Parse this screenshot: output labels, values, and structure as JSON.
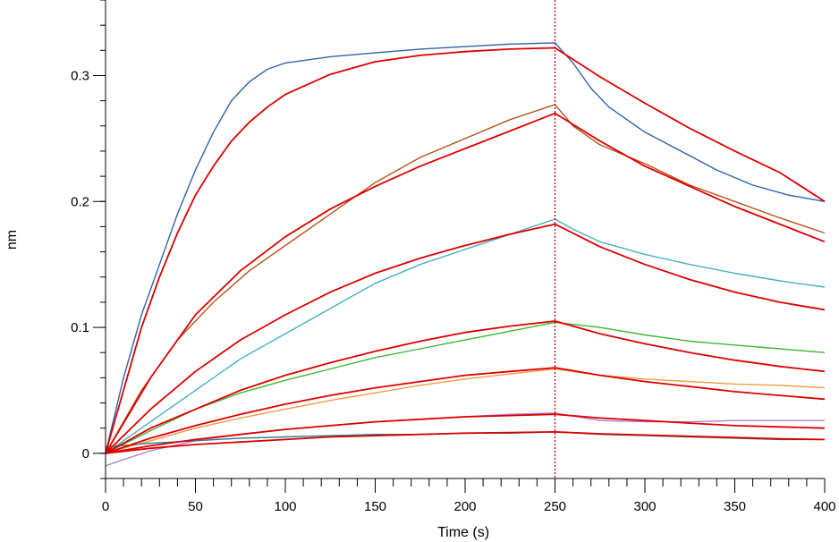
{
  "chart_data": {
    "type": "line",
    "title": "",
    "xlabel": "Time (s)",
    "ylabel": "nm",
    "xlim": [
      0,
      400
    ],
    "ylim": [
      -0.02,
      0.36
    ],
    "x_ticks": [
      0,
      50,
      100,
      150,
      200,
      250,
      300,
      350,
      400
    ],
    "x_tick_labels": [
      "0",
      "50",
      "100",
      "150",
      "200",
      "250",
      "300",
      "350",
      "400"
    ],
    "y_ticks": [
      0,
      0.1,
      0.2,
      0.3
    ],
    "y_tick_labels": [
      "0",
      "0.1",
      "0.2",
      "0.3"
    ],
    "x_minor_step": 10,
    "y_minor_step": 0.02,
    "association_end": 250,
    "marker_line_color": "#c00000",
    "fit_color": "#dd0000",
    "grid": false,
    "legend": "none",
    "series": [
      {
        "color": "#2e64aa",
        "points": [
          [
            0,
            0
          ],
          [
            10,
            0.06
          ],
          [
            20,
            0.11
          ],
          [
            30,
            0.15
          ],
          [
            40,
            0.19
          ],
          [
            50,
            0.225
          ],
          [
            60,
            0.255
          ],
          [
            70,
            0.28
          ],
          [
            80,
            0.295
          ],
          [
            90,
            0.305
          ],
          [
            100,
            0.31
          ],
          [
            125,
            0.315
          ],
          [
            150,
            0.318
          ],
          [
            175,
            0.321
          ],
          [
            200,
            0.323
          ],
          [
            225,
            0.325
          ],
          [
            250,
            0.326
          ],
          [
            260,
            0.31
          ],
          [
            270,
            0.29
          ],
          [
            280,
            0.275
          ],
          [
            290,
            0.265
          ],
          [
            300,
            0.255
          ],
          [
            320,
            0.24
          ],
          [
            340,
            0.225
          ],
          [
            360,
            0.213
          ],
          [
            380,
            0.205
          ],
          [
            400,
            0.2
          ]
        ]
      },
      {
        "color": "#b5531c",
        "points": [
          [
            0,
            0
          ],
          [
            20,
            0.05
          ],
          [
            40,
            0.09
          ],
          [
            60,
            0.12
          ],
          [
            80,
            0.145
          ],
          [
            100,
            0.165
          ],
          [
            125,
            0.19
          ],
          [
            150,
            0.215
          ],
          [
            175,
            0.235
          ],
          [
            200,
            0.25
          ],
          [
            225,
            0.265
          ],
          [
            250,
            0.277
          ],
          [
            260,
            0.26
          ],
          [
            275,
            0.245
          ],
          [
            300,
            0.23
          ],
          [
            325,
            0.213
          ],
          [
            350,
            0.2
          ],
          [
            375,
            0.187
          ],
          [
            400,
            0.175
          ]
        ]
      },
      {
        "color": "#45b0c0",
        "points": [
          [
            0,
            0
          ],
          [
            25,
            0.025
          ],
          [
            50,
            0.05
          ],
          [
            75,
            0.075
          ],
          [
            100,
            0.095
          ],
          [
            125,
            0.115
          ],
          [
            150,
            0.135
          ],
          [
            175,
            0.15
          ],
          [
            200,
            0.162
          ],
          [
            225,
            0.174
          ],
          [
            250,
            0.186
          ],
          [
            260,
            0.178
          ],
          [
            275,
            0.168
          ],
          [
            300,
            0.158
          ],
          [
            325,
            0.15
          ],
          [
            350,
            0.143
          ],
          [
            375,
            0.137
          ],
          [
            400,
            0.132
          ]
        ]
      },
      {
        "color": "#3fb734",
        "points": [
          [
            0,
            0
          ],
          [
            25,
            0.018
          ],
          [
            50,
            0.035
          ],
          [
            75,
            0.048
          ],
          [
            100,
            0.058
          ],
          [
            125,
            0.067
          ],
          [
            150,
            0.076
          ],
          [
            175,
            0.083
          ],
          [
            200,
            0.09
          ],
          [
            225,
            0.097
          ],
          [
            250,
            0.104
          ],
          [
            275,
            0.1
          ],
          [
            300,
            0.094
          ],
          [
            325,
            0.089
          ],
          [
            350,
            0.086
          ],
          [
            375,
            0.083
          ],
          [
            400,
            0.08
          ]
        ]
      },
      {
        "color": "#f09b45",
        "points": [
          [
            0,
            0
          ],
          [
            25,
            0.01
          ],
          [
            50,
            0.02
          ],
          [
            75,
            0.028
          ],
          [
            100,
            0.035
          ],
          [
            125,
            0.042
          ],
          [
            150,
            0.048
          ],
          [
            175,
            0.054
          ],
          [
            200,
            0.059
          ],
          [
            225,
            0.063
          ],
          [
            250,
            0.067
          ],
          [
            275,
            0.062
          ],
          [
            300,
            0.059
          ],
          [
            325,
            0.057
          ],
          [
            350,
            0.055
          ],
          [
            375,
            0.054
          ],
          [
            400,
            0.052
          ]
        ]
      },
      {
        "color": "#b07fd8",
        "points": [
          [
            0,
            -0.01
          ],
          [
            10,
            -0.005
          ],
          [
            25,
            0.002
          ],
          [
            50,
            0.01
          ],
          [
            75,
            0.015
          ],
          [
            100,
            0.019
          ],
          [
            125,
            0.022
          ],
          [
            150,
            0.025
          ],
          [
            175,
            0.027
          ],
          [
            200,
            0.029
          ],
          [
            225,
            0.031
          ],
          [
            250,
            0.032
          ],
          [
            275,
            0.026
          ],
          [
            300,
            0.025
          ],
          [
            325,
            0.025
          ],
          [
            350,
            0.026
          ],
          [
            375,
            0.026
          ],
          [
            400,
            0.026
          ]
        ]
      },
      {
        "color": "#2e7f8a",
        "points": [
          [
            0,
            0.005
          ],
          [
            25,
            0.008
          ],
          [
            50,
            0.01
          ],
          [
            75,
            0.012
          ],
          [
            100,
            0.013
          ],
          [
            125,
            0.014
          ],
          [
            150,
            0.015
          ],
          [
            175,
            0.015
          ],
          [
            200,
            0.016
          ],
          [
            225,
            0.016
          ],
          [
            250,
            0.017
          ],
          [
            275,
            0.015
          ],
          [
            300,
            0.014
          ],
          [
            325,
            0.013
          ],
          [
            350,
            0.012
          ],
          [
            375,
            0.011
          ],
          [
            400,
            0.011
          ]
        ]
      }
    ],
    "fits": [
      {
        "color": "#dd0000",
        "points": [
          [
            0,
            0
          ],
          [
            10,
            0.05
          ],
          [
            20,
            0.1
          ],
          [
            30,
            0.14
          ],
          [
            40,
            0.175
          ],
          [
            50,
            0.205
          ],
          [
            60,
            0.228
          ],
          [
            70,
            0.248
          ],
          [
            80,
            0.263
          ],
          [
            90,
            0.275
          ],
          [
            100,
            0.285
          ],
          [
            125,
            0.301
          ],
          [
            150,
            0.311
          ],
          [
            175,
            0.316
          ],
          [
            200,
            0.319
          ],
          [
            225,
            0.321
          ],
          [
            250,
            0.322
          ],
          [
            275,
            0.299
          ],
          [
            300,
            0.278
          ],
          [
            325,
            0.258
          ],
          [
            350,
            0.24
          ],
          [
            375,
            0.223
          ],
          [
            400,
            0.2
          ]
        ]
      },
      {
        "color": "#dd0000",
        "points": [
          [
            0,
            0
          ],
          [
            25,
            0.06
          ],
          [
            50,
            0.11
          ],
          [
            75,
            0.145
          ],
          [
            100,
            0.172
          ],
          [
            125,
            0.194
          ],
          [
            150,
            0.212
          ],
          [
            175,
            0.228
          ],
          [
            200,
            0.242
          ],
          [
            225,
            0.256
          ],
          [
            250,
            0.27
          ],
          [
            275,
            0.248
          ],
          [
            300,
            0.228
          ],
          [
            325,
            0.212
          ],
          [
            350,
            0.196
          ],
          [
            375,
            0.182
          ],
          [
            400,
            0.168
          ]
        ]
      },
      {
        "color": "#dd0000",
        "points": [
          [
            0,
            0
          ],
          [
            25,
            0.035
          ],
          [
            50,
            0.065
          ],
          [
            75,
            0.09
          ],
          [
            100,
            0.11
          ],
          [
            125,
            0.128
          ],
          [
            150,
            0.143
          ],
          [
            175,
            0.155
          ],
          [
            200,
            0.165
          ],
          [
            225,
            0.174
          ],
          [
            250,
            0.182
          ],
          [
            275,
            0.164
          ],
          [
            300,
            0.15
          ],
          [
            325,
            0.138
          ],
          [
            350,
            0.128
          ],
          [
            375,
            0.12
          ],
          [
            400,
            0.114
          ]
        ]
      },
      {
        "color": "#dd0000",
        "points": [
          [
            0,
            0
          ],
          [
            25,
            0.02
          ],
          [
            50,
            0.035
          ],
          [
            75,
            0.05
          ],
          [
            100,
            0.062
          ],
          [
            125,
            0.072
          ],
          [
            150,
            0.081
          ],
          [
            175,
            0.089
          ],
          [
            200,
            0.096
          ],
          [
            225,
            0.101
          ],
          [
            250,
            0.105
          ],
          [
            275,
            0.095
          ],
          [
            300,
            0.087
          ],
          [
            325,
            0.08
          ],
          [
            350,
            0.074
          ],
          [
            375,
            0.069
          ],
          [
            400,
            0.065
          ]
        ]
      },
      {
        "color": "#dd0000",
        "points": [
          [
            0,
            0
          ],
          [
            25,
            0.012
          ],
          [
            50,
            0.022
          ],
          [
            75,
            0.031
          ],
          [
            100,
            0.039
          ],
          [
            125,
            0.046
          ],
          [
            150,
            0.052
          ],
          [
            175,
            0.057
          ],
          [
            200,
            0.062
          ],
          [
            225,
            0.065
          ],
          [
            250,
            0.068
          ],
          [
            275,
            0.062
          ],
          [
            300,
            0.057
          ],
          [
            325,
            0.053
          ],
          [
            350,
            0.049
          ],
          [
            375,
            0.046
          ],
          [
            400,
            0.043
          ]
        ]
      },
      {
        "color": "#dd0000",
        "points": [
          [
            0,
            0
          ],
          [
            25,
            0.006
          ],
          [
            50,
            0.011
          ],
          [
            75,
            0.015
          ],
          [
            100,
            0.019
          ],
          [
            125,
            0.022
          ],
          [
            150,
            0.025
          ],
          [
            175,
            0.027
          ],
          [
            200,
            0.029
          ],
          [
            225,
            0.03
          ],
          [
            250,
            0.031
          ],
          [
            275,
            0.028
          ],
          [
            300,
            0.026
          ],
          [
            325,
            0.024
          ],
          [
            350,
            0.022
          ],
          [
            375,
            0.021
          ],
          [
            400,
            0.02
          ]
        ]
      },
      {
        "color": "#dd0000",
        "points": [
          [
            0,
            0
          ],
          [
            25,
            0.004
          ],
          [
            50,
            0.007
          ],
          [
            75,
            0.009
          ],
          [
            100,
            0.011
          ],
          [
            125,
            0.013
          ],
          [
            150,
            0.014
          ],
          [
            175,
            0.015
          ],
          [
            200,
            0.016
          ],
          [
            225,
            0.0165
          ],
          [
            250,
            0.017
          ],
          [
            275,
            0.0155
          ],
          [
            300,
            0.0145
          ],
          [
            325,
            0.0135
          ],
          [
            350,
            0.0125
          ],
          [
            375,
            0.0115
          ],
          [
            400,
            0.011
          ]
        ]
      }
    ]
  }
}
